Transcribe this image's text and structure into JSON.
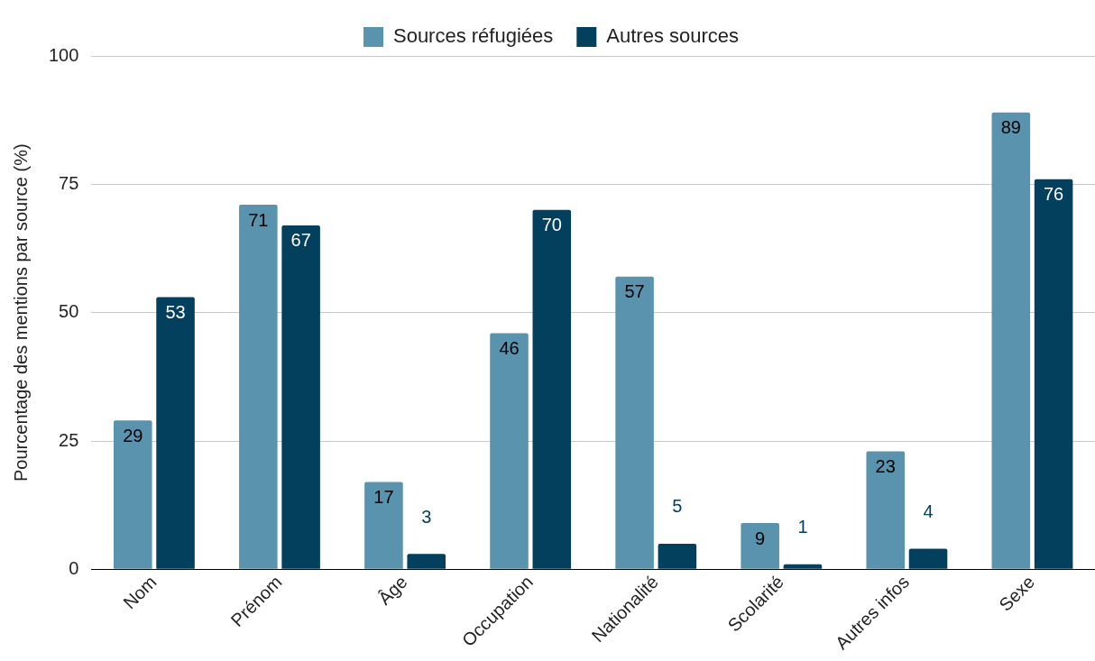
{
  "chart_data": {
    "type": "bar",
    "ylabel": "Pourcentage des mentions par source (%)",
    "categories": [
      "Nom",
      "Prénom",
      "Âge",
      "Occupation",
      "Nationalité",
      "Scolarité",
      "Autres infos",
      "Sexe"
    ],
    "series": [
      {
        "name": "Sources réfugiées",
        "color": "#5a93ae",
        "values": [
          29,
          71,
          17,
          46,
          57,
          9,
          23,
          89
        ]
      },
      {
        "name": "Autres sources",
        "color": "#03405e",
        "values": [
          53,
          67,
          3,
          70,
          5,
          1,
          4,
          76
        ]
      }
    ],
    "ylim": [
      0,
      100
    ],
    "yticks": [
      0,
      25,
      50,
      75,
      100
    ],
    "grid": "y",
    "legend": "top",
    "data_labels": true
  }
}
